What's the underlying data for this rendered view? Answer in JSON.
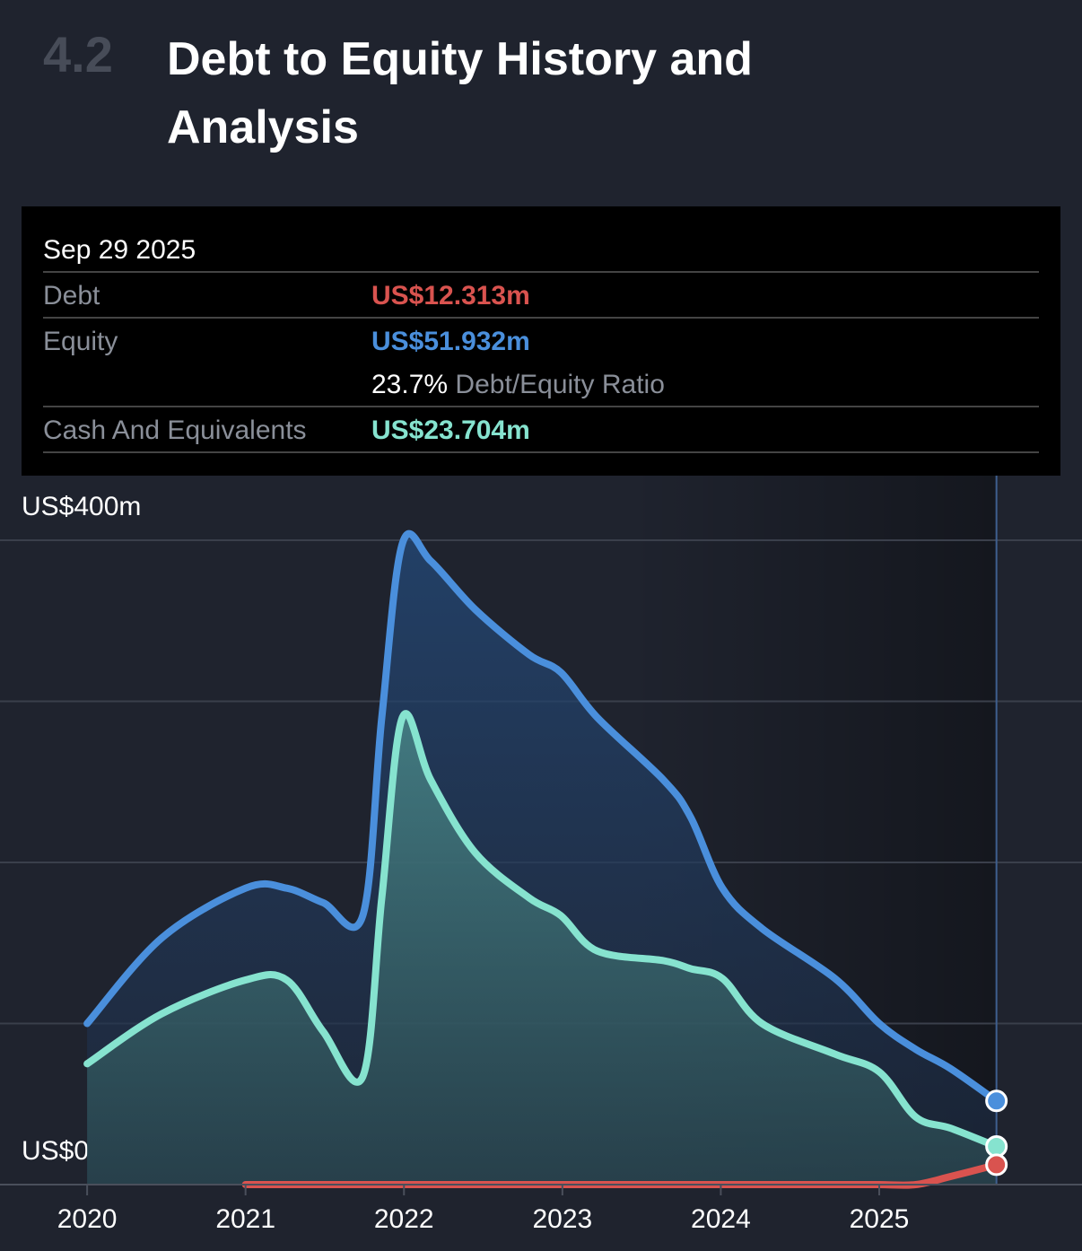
{
  "header": {
    "section": "4.2",
    "title": "Debt to Equity History and Analysis"
  },
  "tooltip": {
    "date": "Sep 29 2025",
    "rows": [
      {
        "label": "Debt",
        "value": "US$12.313m"
      },
      {
        "label": "Equity",
        "value": "US$51.932m"
      },
      {
        "value": "23.7%",
        "label": "Debt/Equity Ratio"
      },
      {
        "label": "Cash And Equivalents",
        "value": "US$23.704m"
      }
    ]
  },
  "chart_data": {
    "type": "area",
    "x": [
      2020.0,
      2020.47,
      2021.0,
      2021.26,
      2021.49,
      2021.74,
      2021.86,
      2021.99,
      2022.17,
      2022.45,
      2022.79,
      2022.99,
      2023.22,
      2023.64,
      2023.81,
      2024.01,
      2024.26,
      2024.72,
      2025.0,
      2025.23,
      2025.45,
      2025.74
    ],
    "series": [
      {
        "name": "Equity",
        "color": "#4a8fdc",
        "values": [
          100,
          153,
          184,
          184,
          175,
          167,
          290,
          398,
          387,
          357,
          329,
          318,
          290,
          251,
          228,
          184,
          159,
          128,
          100,
          84,
          72,
          51.932
        ]
      },
      {
        "name": "Cash And Equivalents",
        "color": "#86e3cf",
        "values": [
          75,
          106,
          127,
          127,
          95,
          67,
          178,
          290,
          251,
          206,
          178,
          167,
          145,
          139,
          134,
          128,
          100,
          81,
          70,
          42,
          35,
          23.704
        ]
      },
      {
        "name": "Debt",
        "color": "#d9534f",
        "values": [
          null,
          null,
          0,
          0,
          0,
          0,
          0,
          0,
          0,
          0,
          0,
          0,
          0,
          0,
          0,
          0,
          0,
          0,
          0,
          0,
          5,
          12.313
        ]
      }
    ],
    "xlim": [
      2019.45,
      2026.28
    ],
    "xticks": [
      2020,
      2021,
      2022,
      2023,
      2024,
      2025
    ],
    "ylim": [
      0,
      400
    ],
    "yticks": [
      {
        "value": 0,
        "label": "US$0"
      },
      {
        "value": 100,
        "label": null
      },
      {
        "value": 200,
        "label": null
      },
      {
        "value": 300,
        "label": null
      },
      {
        "value": 400,
        "label": "US$400m"
      }
    ],
    "grid": true
  }
}
